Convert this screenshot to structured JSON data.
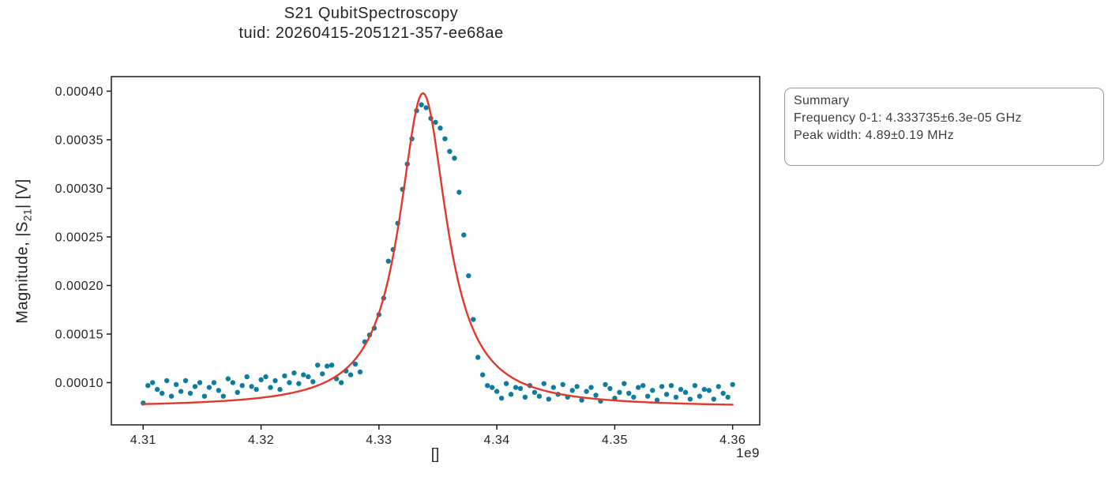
{
  "figure": {
    "title": "S21 QubitSpectroscopy",
    "subtitle": "tuid: 20260415-205121-357-ee68ae"
  },
  "axes": {
    "ylabel_prefix": "Magnitude, |S",
    "ylabel_sub": "21",
    "ylabel_suffix": "| [V]",
    "xlabel": "[]",
    "x_offset_label": "1e9"
  },
  "summary": {
    "heading": "Summary",
    "frequency_line": "Frequency 0-1: 4.333735±6.3e-05 GHz",
    "peak_width_line": "Peak width: 4.89±0.19 MHz"
  },
  "colors": {
    "scatter": "#0d7c9d",
    "fit_line": "#e2372b",
    "frame": "#1a1a1a",
    "tick_text": "#242424",
    "box_border": "#999999"
  },
  "chart_data": {
    "type": "scatter",
    "title": "S21 QubitSpectroscopy",
    "xlabel": "[]",
    "ylabel": "Magnitude, |S21| [V]",
    "x_unit": "Hz (axis shown in units of 1e9)",
    "y_unit": "V",
    "grid": false,
    "legend": "none",
    "xlim_ghz": [
      4.3073,
      4.3623
    ],
    "ylim_v": [
      5.65e-05,
      0.000415
    ],
    "x_ticks_ghz": [
      4.31,
      4.32,
      4.33,
      4.34,
      4.35,
      4.36
    ],
    "x_tick_labels": [
      "4.31",
      "4.32",
      "4.33",
      "4.34",
      "4.35",
      "4.36"
    ],
    "y_ticks_v": [
      0.0001,
      0.00015,
      0.0002,
      0.00025,
      0.0003,
      0.00035,
      0.0004
    ],
    "y_tick_labels": [
      "0.00010",
      "0.00015",
      "0.00020",
      "0.00025",
      "0.00030",
      "0.00035",
      "0.00040"
    ],
    "series": [
      {
        "name": "measured-points",
        "type": "scatter",
        "color": "#0d7c9d",
        "marker": "circle",
        "marker_radius": 3.2,
        "x_start_ghz": 4.31,
        "x_step_ghz": 0.0004,
        "n_points": 126,
        "y_scale": 1e-06,
        "y": [
          79,
          97,
          100,
          93,
          89,
          102,
          86,
          98,
          91,
          102,
          89,
          96,
          100,
          86,
          95,
          100,
          92,
          86,
          104,
          100,
          90,
          97,
          106,
          96,
          93,
          103,
          106,
          95,
          102,
          93,
          107,
          100,
          110,
          99,
          108,
          106,
          101,
          118,
          109,
          117,
          118,
          104,
          100,
          112,
          108,
          119,
          111,
          142,
          149,
          156,
          170,
          187,
          225,
          237,
          264,
          299,
          325,
          351,
          380,
          386,
          383,
          372,
          368,
          362,
          351,
          338,
          331,
          296,
          252,
          210,
          165,
          126,
          108,
          97,
          95,
          91,
          84,
          99,
          88,
          95,
          94,
          85,
          97,
          90,
          86,
          99,
          83,
          95,
          88,
          98,
          85,
          92,
          96,
          82,
          91,
          95,
          87,
          81,
          98,
          94,
          84,
          90,
          99,
          89,
          85,
          95,
          97,
          86,
          92,
          82,
          96,
          88,
          97,
          85,
          93,
          90,
          83,
          97,
          86,
          93,
          92,
          83,
          96,
          89,
          85,
          98
        ]
      },
      {
        "name": "lorentzian-fit",
        "type": "line",
        "color": "#e2372b",
        "line_width": 2.4,
        "model": "offset + amplitude / (1 + ((x - center)/hwhm)^2)",
        "center_ghz": 4.333735,
        "center_err_ghz": 6.3e-05,
        "fwhm_mhz": 4.89,
        "fwhm_err_mhz": 0.19,
        "hwhm_ghz": 0.002445,
        "offset_v": 7.45e-05,
        "amplitude_v": 0.0003235,
        "peak_value_v": 0.000398,
        "x_range_ghz": [
          4.31,
          4.36
        ]
      }
    ]
  }
}
